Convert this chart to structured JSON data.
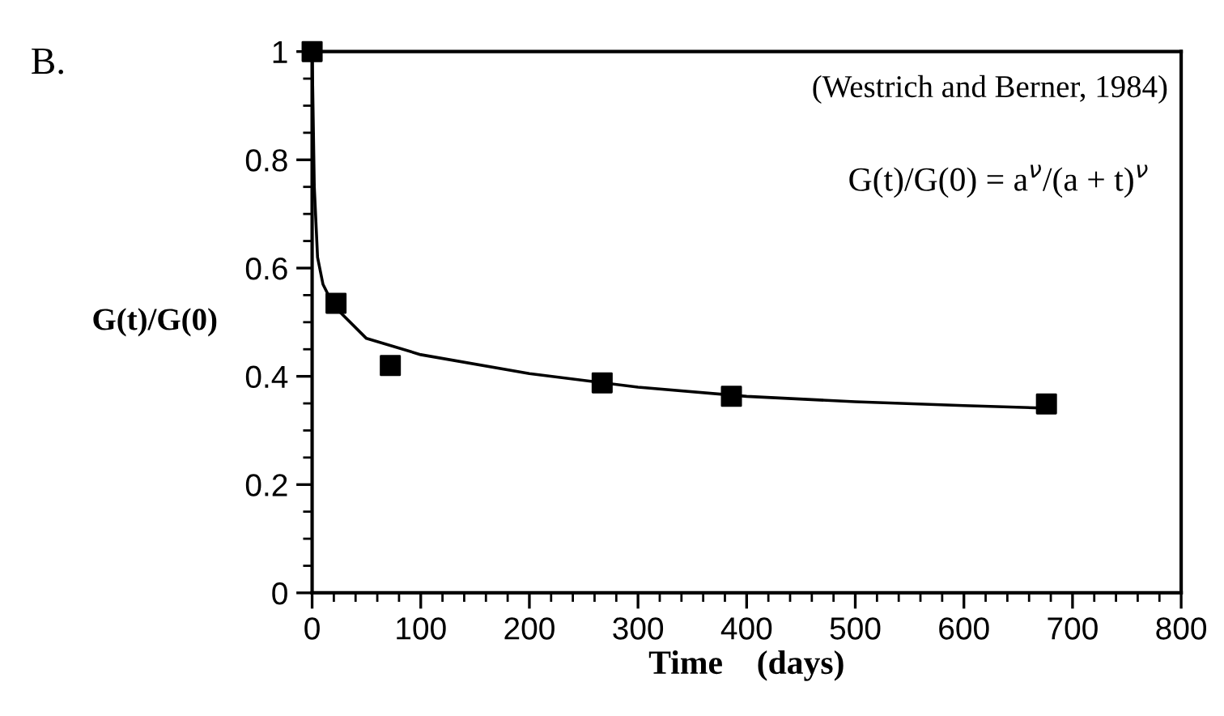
{
  "chart_data": {
    "type": "scatter",
    "xlabel": "Time    (days)",
    "ylabel": "G(t)/G(0)",
    "annotations": [
      "B.",
      "(Westrich and Berner, 1984)",
      "G(t)/G(0) = a$^{ν}$/(a + t)$^{ν}$"
    ],
    "series": [
      {
        "color": "#000000",
        "marker": "square",
        "x": [
          0,
          22,
          72,
          267,
          386,
          676
        ],
        "values": [
          1,
          0.535,
          0.42,
          0.388,
          0.363,
          0.349
        ]
      },
      {
        "type": "line",
        "color": "#000000",
        "marker": "none",
        "line_style": "solid",
        "x": [
          0,
          2,
          5,
          10,
          20,
          50,
          100,
          200,
          300,
          400,
          500,
          600,
          680
        ],
        "values": [
          1,
          0.75,
          0.62,
          0.57,
          0.53,
          0.47,
          0.44,
          0.405,
          0.38,
          0.363,
          0.353,
          0.346,
          0.341
        ]
      }
    ],
    "xlim": [
      0,
      800
    ],
    "xticks": [
      0,
      100,
      200,
      300,
      400,
      500,
      600,
      700,
      800
    ],
    "ylim": [
      0,
      1
    ],
    "yticks": [
      0,
      {
        "value": 0.2,
        "label": "0.2"
      },
      {
        "value": 0.4,
        "label": "0.4"
      },
      {
        "value": 0.6,
        "label": "0.6"
      },
      {
        "value": 0.8,
        "label": "0.8"
      },
      1
    ],
    "grid": false,
    "legend": false
  }
}
